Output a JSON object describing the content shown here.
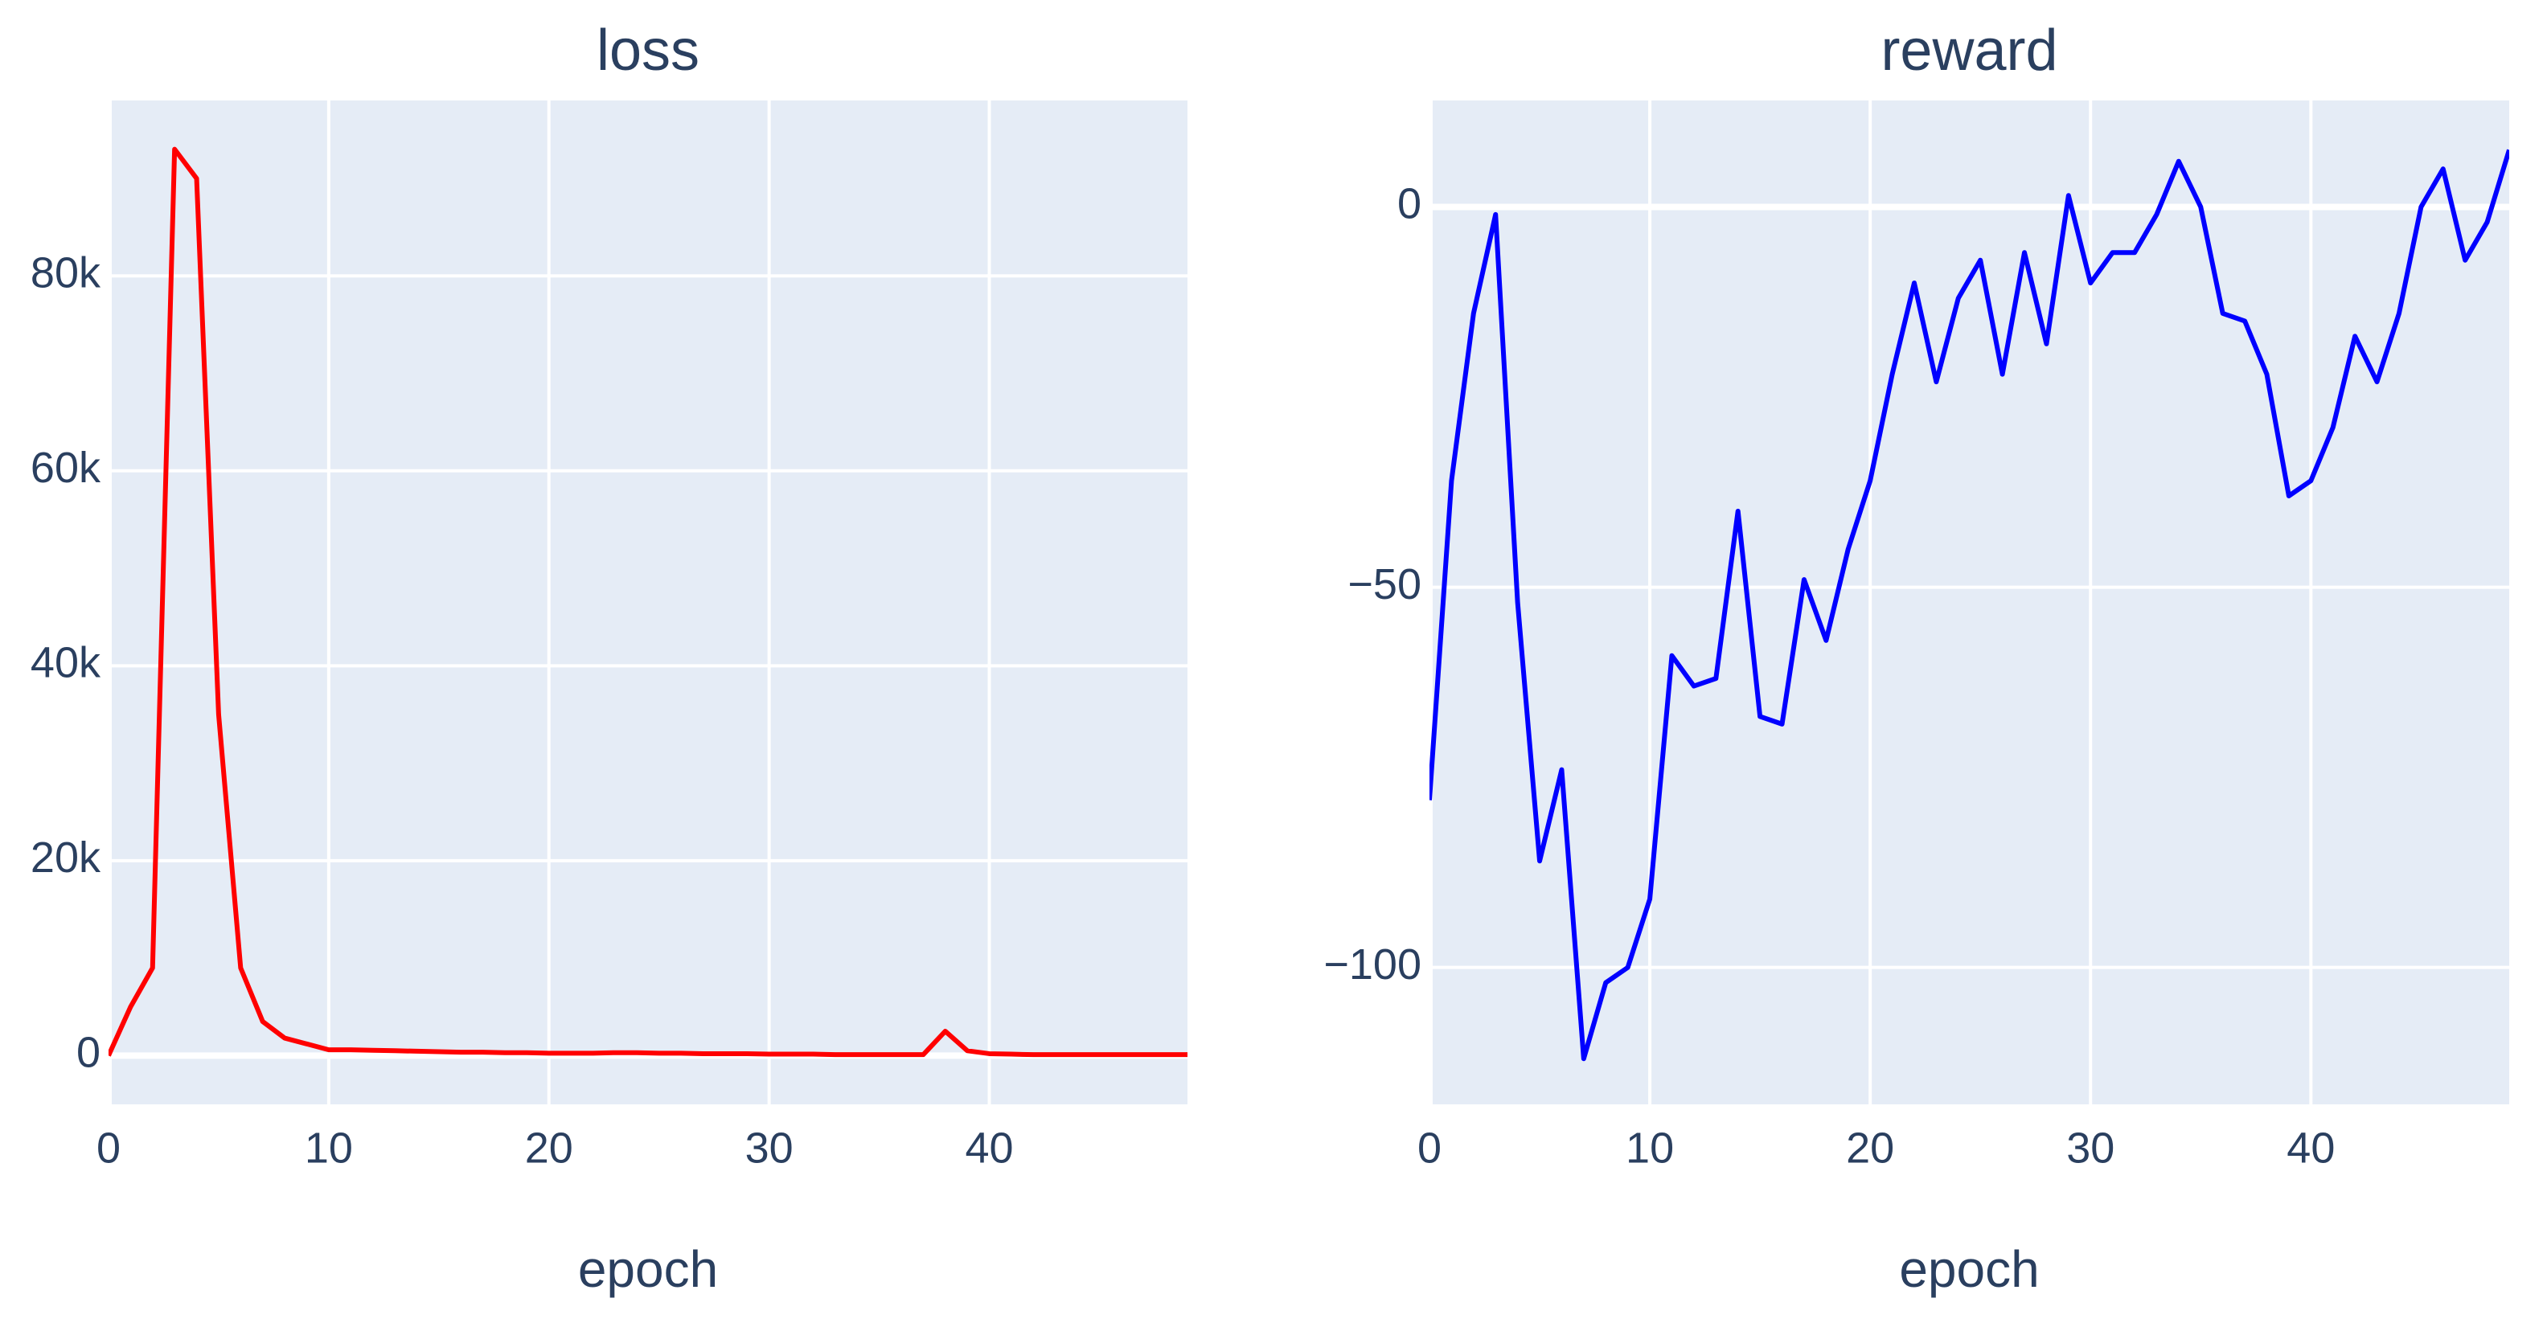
{
  "chart_data": [
    {
      "type": "line",
      "title": "loss",
      "xlabel": "epoch",
      "x": [
        0,
        1,
        2,
        3,
        4,
        5,
        6,
        7,
        8,
        9,
        10,
        11,
        12,
        13,
        14,
        15,
        16,
        17,
        18,
        19,
        20,
        21,
        22,
        23,
        24,
        25,
        26,
        27,
        28,
        29,
        30,
        31,
        32,
        33,
        34,
        35,
        36,
        37,
        38,
        39,
        40,
        41,
        42,
        43,
        44,
        45,
        46,
        47,
        48,
        49
      ],
      "series": [
        {
          "color": "#ff0000",
          "values": [
            0,
            5000,
            9000,
            93000,
            90000,
            35000,
            9000,
            3500,
            1800,
            1200,
            600,
            600,
            550,
            500,
            450,
            400,
            350,
            350,
            300,
            300,
            250,
            250,
            250,
            300,
            300,
            250,
            250,
            200,
            200,
            200,
            150,
            150,
            150,
            100,
            100,
            100,
            100,
            100,
            2500,
            500,
            200,
            150,
            100,
            100,
            100,
            100,
            100,
            100,
            100,
            100
          ]
        }
      ],
      "xlim": [
        0,
        49
      ],
      "xticks": [
        0,
        10,
        20,
        30,
        40
      ],
      "ylim": [
        -5000,
        98000
      ],
      "yticks": [
        0,
        {
          "value": 20000,
          "label": "20k"
        },
        {
          "value": 40000,
          "label": "40k"
        },
        {
          "value": 60000,
          "label": "60k"
        },
        {
          "value": 80000,
          "label": "80k"
        }
      ],
      "grid": true
    },
    {
      "type": "line",
      "title": "reward",
      "xlabel": "epoch",
      "x": [
        0,
        1,
        2,
        3,
        4,
        5,
        6,
        7,
        8,
        9,
        10,
        11,
        12,
        13,
        14,
        15,
        16,
        17,
        18,
        19,
        20,
        21,
        22,
        23,
        24,
        25,
        26,
        27,
        28,
        29,
        30,
        31,
        32,
        33,
        34,
        35,
        36,
        37,
        38,
        39,
        40,
        41,
        42,
        43,
        44,
        45,
        46,
        47,
        48,
        49
      ],
      "series": [
        {
          "color": "#0000ff",
          "values": [
            -78,
            -36,
            -14,
            -1,
            -52,
            -86,
            -74,
            -112,
            -102,
            -100,
            -91,
            -59,
            -63,
            -62,
            -40,
            -67,
            -68,
            -49,
            -57,
            -45,
            -36,
            -22,
            -10,
            -23,
            -12,
            -7,
            -22,
            -6,
            -18,
            1.5,
            -10,
            -6,
            -6,
            -1,
            6,
            0,
            -14,
            -15,
            -22,
            -38,
            -36,
            -29,
            -17,
            -23,
            -14,
            0,
            5,
            -7,
            -2,
            7.5
          ]
        }
      ],
      "xlim": [
        0,
        49
      ],
      "xticks": [
        0,
        10,
        20,
        30,
        40
      ],
      "ylim": [
        -118,
        14
      ],
      "yticks": [
        {
          "value": -100,
          "label": "−100"
        },
        {
          "value": -50,
          "label": "−50"
        },
        0
      ],
      "grid": true
    }
  ]
}
